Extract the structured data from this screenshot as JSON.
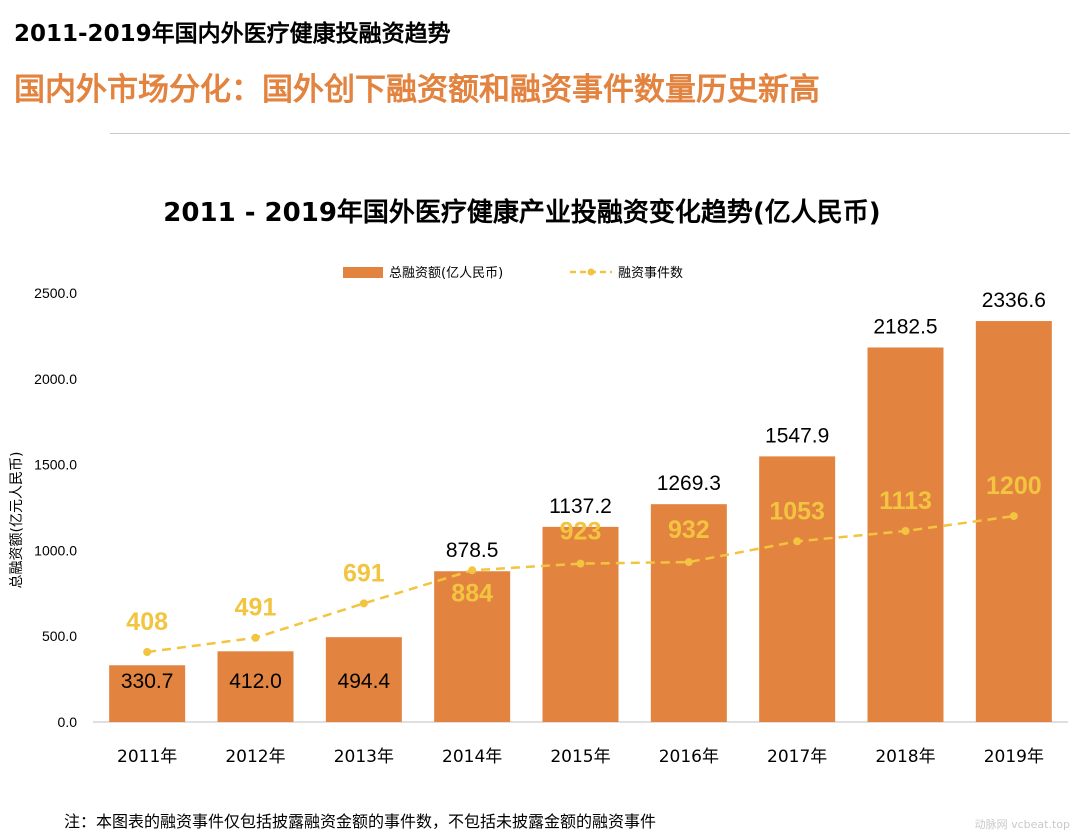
{
  "header": {
    "title": "2011-2019年国内外医疗健康投融资趋势",
    "subtitle": "国内外市场分化：国外创下融资额和融资事件数量历史新高"
  },
  "chart_data": {
    "type": "bar",
    "title": "2011 - 2019年国外医疗健康产业投融资变化趋势(亿人民币)",
    "categories": [
      "2011年",
      "2012年",
      "2013年",
      "2014年",
      "2015年",
      "2016年",
      "2017年",
      "2018年",
      "2019年"
    ],
    "series": [
      {
        "name": "总融资额(亿人民币)",
        "type": "bar",
        "color": "#e2833f",
        "values": [
          330.7,
          412.0,
          494.4,
          878.5,
          1137.2,
          1269.3,
          1547.9,
          2182.5,
          2336.6
        ],
        "labels": [
          "330.7",
          "412.0",
          "494.4",
          "878.5",
          "1137.2",
          "1269.3",
          "1547.9",
          "2182.5",
          "2336.6"
        ]
      },
      {
        "name": "融资事件数",
        "type": "line",
        "style": "dashed",
        "color": "#f2c440",
        "values": [
          408,
          491,
          691,
          884,
          923,
          932,
          1053,
          1113,
          1200
        ],
        "labels": [
          "408",
          "491",
          "691",
          "884",
          "923",
          "932",
          "1053",
          "1113",
          "1200"
        ]
      }
    ],
    "ylabel": "总融资额(亿元人民币)",
    "ylim": [
      0,
      2500
    ],
    "yticks": [
      "0.0",
      "500.0",
      "1000.0",
      "1500.0",
      "2000.0",
      "2500.0"
    ],
    "legend_position": "top"
  },
  "footnote": "注：本图表的融资事件仅包括披露融资金额的事件数，不包括未披露金额的融资事件",
  "watermark": "动脉网 vcbeat.top"
}
